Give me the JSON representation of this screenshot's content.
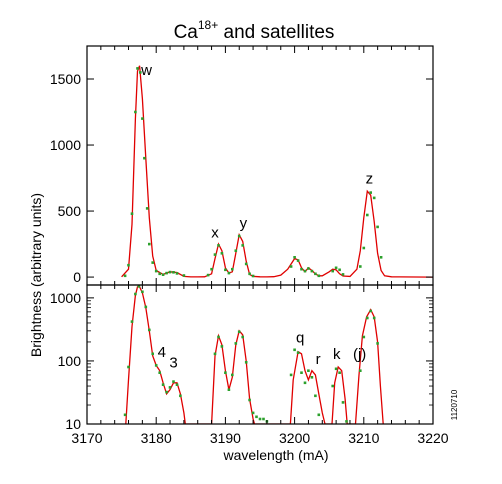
{
  "chart_data": [
    {
      "type": "line",
      "title": "Ca",
      "title_superscript": "18+",
      "title_suffix": " and satellites",
      "ylabel": "Brightness (arbitrary units)",
      "yscale": "linear",
      "ylim": [
        -60,
        1750
      ],
      "yticks": [
        0,
        500,
        1000,
        1500
      ],
      "xlim": [
        3170,
        3220
      ],
      "line_color": "#e00000",
      "point_color": "#2ca02c",
      "annotations": [
        {
          "text": "w",
          "x": 3178.6,
          "y": 1530
        },
        {
          "text": "x",
          "x": 3188.5,
          "y": 300
        },
        {
          "text": "y",
          "x": 3192.6,
          "y": 370
        },
        {
          "text": "z",
          "x": 3210.8,
          "y": 710
        }
      ],
      "series": [
        {
          "style": "line",
          "x": [
            3175,
            3176,
            3176.5,
            3177,
            3177.3,
            3177.6,
            3178,
            3178.5,
            3179,
            3179.5,
            3180,
            3181,
            3182,
            3183,
            3184,
            3185,
            3186,
            3187,
            3188,
            3188.5,
            3189,
            3189.5,
            3190,
            3190.5,
            3191,
            3191.5,
            3192,
            3192.5,
            3193,
            3193.5,
            3194,
            3195,
            3196,
            3197,
            3198,
            3199,
            3200,
            3200.5,
            3201,
            3201.5,
            3202,
            3202.5,
            3203,
            3203.5,
            3204,
            3205,
            3205.5,
            3206,
            3206.5,
            3207,
            3208,
            3209,
            3209.5,
            3210,
            3210.5,
            3211,
            3211.5,
            3212,
            3212.5,
            3213,
            3214,
            3215,
            3220
          ],
          "y": [
            2,
            60,
            400,
            1200,
            1560,
            1600,
            1350,
            900,
            450,
            160,
            50,
            20,
            40,
            35,
            5,
            1,
            1,
            2,
            25,
            140,
            250,
            200,
            70,
            30,
            40,
            180,
            320,
            270,
            120,
            20,
            5,
            2,
            1,
            3,
            15,
            60,
            140,
            130,
            70,
            40,
            70,
            50,
            25,
            10,
            10,
            40,
            60,
            55,
            25,
            8,
            5,
            60,
            200,
            450,
            650,
            620,
            420,
            180,
            50,
            10,
            2,
            1,
            0
          ]
        },
        {
          "style": "points",
          "x": [
            3175.5,
            3176,
            3176.5,
            3177,
            3177.3,
            3177.7,
            3178,
            3178.3,
            3178.7,
            3179,
            3179.5,
            3180,
            3180.5,
            3181,
            3181.5,
            3182,
            3182.5,
            3183,
            3184,
            3187.5,
            3188,
            3188.5,
            3189,
            3189.5,
            3190,
            3190.5,
            3191,
            3191.5,
            3192,
            3192.5,
            3193,
            3193.5,
            3194,
            3199.5,
            3200,
            3200.5,
            3201,
            3201.5,
            3202,
            3202.5,
            3203,
            3203.5,
            3205.5,
            3206,
            3206.5,
            3207,
            3209.5,
            3210,
            3210.5,
            3211,
            3211.5,
            3212,
            3212.5
          ],
          "y": [
            10,
            90,
            480,
            1250,
            1580,
            1550,
            1200,
            900,
            520,
            250,
            110,
            45,
            25,
            18,
            30,
            38,
            36,
            28,
            12,
            15,
            60,
            170,
            240,
            180,
            55,
            30,
            60,
            200,
            310,
            240,
            100,
            25,
            8,
            80,
            150,
            125,
            60,
            45,
            65,
            45,
            25,
            10,
            45,
            70,
            55,
            20,
            80,
            220,
            470,
            640,
            600,
            380,
            150
          ]
        }
      ]
    },
    {
      "type": "line",
      "xlabel": "wavelength (mA)",
      "yscale": "log",
      "ylim": [
        10,
        1600
      ],
      "yticks": [
        10,
        100,
        1000
      ],
      "xlim": [
        3170,
        3220
      ],
      "xticks": [
        3170,
        3180,
        3190,
        3200,
        3210,
        3220
      ],
      "line_color": "#e00000",
      "point_color": "#2ca02c",
      "annotations": [
        {
          "text": "4",
          "x": 3180.8,
          "y": 115
        },
        {
          "text": "3",
          "x": 3182.5,
          "y": 78
        },
        {
          "text": "q",
          "x": 3200.8,
          "y": 195
        },
        {
          "text": "r",
          "x": 3203.4,
          "y": 90
        },
        {
          "text": "k",
          "x": 3206.1,
          "y": 108
        },
        {
          "text": "(j)",
          "x": 3209.4,
          "y": 108
        }
      ],
      "series": [
        {
          "style": "line",
          "x": [
            3175.6,
            3176,
            3176.5,
            3177,
            3177.3,
            3177.6,
            3178,
            3178.5,
            3179,
            3179.5,
            3180,
            3180.5,
            3181,
            3181.5,
            3182,
            3182.5,
            3183,
            3183.5,
            3184,
            3184.2,
            3188,
            3188.5,
            3189,
            3189.5,
            3190,
            3190.5,
            3191,
            3191.5,
            3192,
            3192.5,
            3193,
            3193.5,
            3194,
            3194.2,
            3199.4,
            3199.8,
            3200.5,
            3201,
            3201.5,
            3202,
            3202.5,
            3203,
            3203.5,
            3204,
            3204.4,
            3205.4,
            3205.8,
            3206.3,
            3206.8,
            3207.3,
            3207.6,
            3208.8,
            3209.3,
            3209.8,
            3210.4,
            3211,
            3211.5,
            3212,
            3212.4,
            3212.8
          ],
          "y": [
            10,
            50,
            350,
            1100,
            1500,
            1500,
            1200,
            700,
            300,
            120,
            85,
            70,
            45,
            30,
            35,
            45,
            45,
            30,
            15,
            10,
            10,
            120,
            250,
            180,
            70,
            35,
            55,
            180,
            300,
            260,
            100,
            25,
            12,
            10,
            10,
            50,
            140,
            130,
            70,
            50,
            70,
            60,
            30,
            15,
            10,
            10,
            45,
            80,
            70,
            25,
            10,
            10,
            60,
            250,
            500,
            650,
            500,
            200,
            40,
            10
          ]
        },
        {
          "style": "points",
          "x": [
            3175.5,
            3176,
            3176.5,
            3177,
            3177.5,
            3178,
            3178.5,
            3179,
            3179.5,
            3180,
            3180.5,
            3181,
            3181.5,
            3182,
            3182.5,
            3183,
            3183.5,
            3188.5,
            3189,
            3189.5,
            3190,
            3190.5,
            3191,
            3191.5,
            3192,
            3192.5,
            3193,
            3193.5,
            3194,
            3194.5,
            3195,
            3195.5,
            3196,
            3199.5,
            3200,
            3200.5,
            3201,
            3201.5,
            3202,
            3202.5,
            3203,
            3203.5,
            3205.5,
            3206,
            3206.5,
            3207,
            3207.5,
            3209.5,
            3210,
            3210.5,
            3211,
            3211.5,
            3212
          ],
          "y": [
            14,
            80,
            420,
            1150,
            1520,
            1250,
            720,
            310,
            130,
            85,
            65,
            42,
            32,
            38,
            47,
            42,
            28,
            130,
            240,
            170,
            65,
            35,
            60,
            190,
            290,
            240,
            95,
            24,
            15,
            13,
            12,
            12,
            11,
            60,
            150,
            135,
            65,
            45,
            70,
            55,
            28,
            14,
            40,
            75,
            65,
            22,
            11,
            70,
            240,
            480,
            620,
            480,
            190
          ]
        }
      ]
    }
  ],
  "side_label": "1120710"
}
